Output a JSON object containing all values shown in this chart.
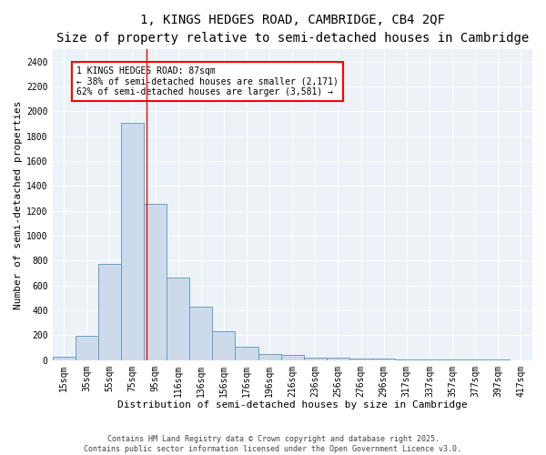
{
  "title": "1, KINGS HEDGES ROAD, CAMBRIDGE, CB4 2QF",
  "subtitle": "Size of property relative to semi-detached houses in Cambridge",
  "xlabel": "Distribution of semi-detached houses by size in Cambridge",
  "ylabel": "Number of semi-detached properties",
  "bar_color": "#ccdaeb",
  "bar_edge_color": "#6a9fc0",
  "categories": [
    "15sqm",
    "35sqm",
    "55sqm",
    "75sqm",
    "95sqm",
    "116sqm",
    "136sqm",
    "156sqm",
    "176sqm",
    "196sqm",
    "216sqm",
    "236sqm",
    "256sqm",
    "276sqm",
    "296sqm",
    "317sqm",
    "337sqm",
    "357sqm",
    "377sqm",
    "397sqm",
    "417sqm"
  ],
  "values": [
    25,
    195,
    775,
    1910,
    1255,
    665,
    430,
    230,
    110,
    50,
    42,
    22,
    18,
    15,
    10,
    7,
    5,
    4,
    3,
    2,
    1
  ],
  "ylim": [
    0,
    2500
  ],
  "yticks": [
    0,
    200,
    400,
    600,
    800,
    1000,
    1200,
    1400,
    1600,
    1800,
    2000,
    2200,
    2400
  ],
  "red_line_x": 3.6,
  "annotation_text": "1 KINGS HEDGES ROAD: 87sqm\n← 38% of semi-detached houses are smaller (2,171)\n62% of semi-detached houses are larger (3,581) →",
  "footnote1": "Contains HM Land Registry data © Crown copyright and database right 2025.",
  "footnote2": "Contains public sector information licensed under the Open Government Licence v3.0.",
  "bg_color": "#edf2f9",
  "grid_color": "#ffffff",
  "title_fontsize": 10,
  "subtitle_fontsize": 9,
  "label_fontsize": 8,
  "tick_fontsize": 7,
  "annotation_fontsize": 7,
  "footnote_fontsize": 6
}
